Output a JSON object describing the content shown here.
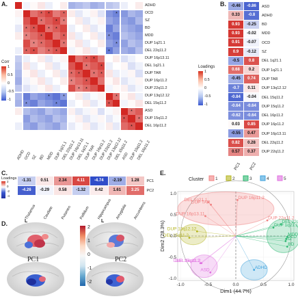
{
  "panel_labels": {
    "A": "A.",
    "B": "B.",
    "C": "C.",
    "D": "D.",
    "E": "E."
  },
  "panel_a": {
    "corr_legend": {
      "title": "Corr",
      "ticks": [
        "1",
        "0.5",
        "0",
        "-0.5",
        "-1"
      ]
    },
    "row_labels": [
      "ADHD",
      "OCD",
      "SZ",
      "BD",
      "MDD",
      "DUP 1q21.1",
      "DEL 22q11.2",
      "DUP 16p13.11",
      "DEL 1q21.1",
      "DUP TAR",
      "DUP 16p11.2",
      "DUP 22q11.2",
      "DUP 13q12.12",
      "DEL 15q11.2",
      "ASD",
      "DUP 15q11.2",
      "DEL 16p11.2"
    ],
    "col_labels": [
      "ADHD",
      "OCD",
      "SZ",
      "BD",
      "MDD",
      "DUP 1q21.1",
      "DEL 22q11.2",
      "DUP 16p13.11",
      "DEL 1q21.1",
      "DUP TAR",
      "DUP 16p11.2",
      "DUP 22q11.2",
      "DUP 13q12.12",
      "DEL 15q11.2",
      "ASD",
      "DUP 15q11.2",
      "DEL 16p11.2"
    ]
  },
  "panel_b": {
    "loadings_legend": {
      "title": "Loadings",
      "ticks": [
        "1",
        "0.5",
        "0",
        "-0.5",
        "-1"
      ]
    },
    "columns": [
      "PC1",
      "PC2"
    ],
    "rows": [
      {
        "label": "ASD",
        "pc1": "-0.46",
        "pc2": "-0.86"
      },
      {
        "label": "ADHD",
        "pc1": "0.33",
        "pc2": "-0.8"
      },
      {
        "label": "BD",
        "pc1": "0.93",
        "pc2": "-0.25"
      },
      {
        "label": "MDD",
        "pc1": "0.93",
        "pc2": "-0.02"
      },
      {
        "label": "OCD",
        "pc1": "0.91",
        "pc2": "-0.07"
      },
      {
        "label": "SZ",
        "pc1": "0.9",
        "pc2": "-0.12"
      },
      {
        "label": "DEL 1q21.1",
        "pc1": "-0.5",
        "pc2": "0.8"
      },
      {
        "label": "DUP 1q21.1",
        "pc1": "0.68",
        "pc2": "0.2"
      },
      {
        "label": "DUP TAR",
        "pc1": "-0.45",
        "pc2": "0.74"
      },
      {
        "label": "DUP 13q12.12",
        "pc1": "-0.7",
        "pc2": "0.11"
      },
      {
        "label": "DEL 15q11.2",
        "pc1": "-0.84",
        "pc2": "-0.04"
      },
      {
        "label": "DUP 15q11.2",
        "pc1": "-0.64",
        "pc2": "-0.64"
      },
      {
        "label": "DEL 16p11.2",
        "pc1": "-0.62",
        "pc2": "-0.64"
      },
      {
        "label": "DUP 16p11.2",
        "pc1": "0.03",
        "pc2": "0.85"
      },
      {
        "label": "DUP 16p13.11",
        "pc1": "-0.55",
        "pc2": "0.47"
      },
      {
        "label": "DEL 22q11.2",
        "pc1": "0.82",
        "pc2": "0.28"
      },
      {
        "label": "DUP 22q11.2",
        "pc1": "0.57",
        "pc2": "0.37"
      }
    ]
  },
  "panel_c": {
    "loadings_legend": {
      "title": "Loadings",
      "ticks": [
        "2",
        "0",
        "-2",
        "-4"
      ]
    },
    "regions": [
      "Thalamus",
      "Caudate",
      "Putamen",
      "Pallidum",
      "Hippocampus",
      "Amygdala",
      "Accumbens"
    ],
    "rows": [
      {
        "label": "PC1",
        "values": [
          "-1.31",
          "0.51",
          "2.34",
          "4.11",
          "-4.74",
          "-2.19",
          "1.28"
        ]
      },
      {
        "label": "PC2",
        "values": [
          "-4.26",
          "-0.29",
          "0.58",
          "-1.32",
          "0.42",
          "1.61",
          "3.25"
        ]
      }
    ]
  },
  "panel_d": {
    "hemisphere_labels": [
      "L",
      "L"
    ],
    "pc_labels": [
      "PC1",
      "PC2"
    ],
    "colorbar_ticks": [
      "2",
      "1",
      "0",
      "-1",
      "-2"
    ]
  },
  "panel_e": {
    "legend_title": "Cluster",
    "clusters": [
      {
        "id": "1",
        "color": "#f08080"
      },
      {
        "id": "2",
        "color": "#b5b520"
      },
      {
        "id": "3",
        "color": "#2eb872"
      },
      {
        "id": "4",
        "color": "#3ea2dc"
      },
      {
        "id": "5",
        "color": "#e070e0"
      }
    ],
    "xlabel": "Dim1 (44.7%)",
    "ylabel": "Dim2 (28.3%)",
    "x_ticks": [
      "-1.0",
      "-0.5",
      "0.0",
      "0.5",
      "1.0"
    ],
    "y_ticks": [
      "1.0",
      "0.5",
      "0.0",
      "-0.5",
      "-1.0"
    ]
  },
  "chart_data": [
    {
      "type": "heatmap",
      "panel": "A",
      "title": "",
      "note": "correlation matrix; colour scale from -1 (blue) to 1 (red)",
      "values_scale": [
        -1,
        1
      ]
    },
    {
      "type": "heatmap",
      "panel": "B",
      "series": [
        {
          "name": "PC1",
          "values": [
            -0.46,
            0.33,
            0.93,
            0.93,
            0.91,
            0.9,
            -0.5,
            0.68,
            -0.45,
            -0.7,
            -0.84,
            -0.64,
            -0.62,
            0.03,
            -0.55,
            0.82,
            0.57
          ]
        },
        {
          "name": "PC2",
          "values": [
            -0.86,
            -0.8,
            -0.25,
            -0.02,
            -0.07,
            -0.12,
            0.8,
            0.2,
            0.74,
            0.11,
            -0.04,
            -0.64,
            -0.64,
            0.85,
            0.47,
            0.28,
            0.37
          ]
        }
      ]
    },
    {
      "type": "heatmap",
      "panel": "C",
      "categories": [
        "Thalamus",
        "Caudate",
        "Putamen",
        "Pallidum",
        "Hippocampus",
        "Amygdala",
        "Accumbens"
      ],
      "series": [
        {
          "name": "PC1",
          "values": [
            -1.31,
            0.51,
            2.34,
            4.11,
            -4.74,
            -2.19,
            1.28
          ]
        },
        {
          "name": "PC2",
          "values": [
            -4.26,
            -0.29,
            0.58,
            -1.32,
            0.42,
            1.61,
            3.25
          ]
        }
      ]
    },
    {
      "type": "scatter",
      "panel": "E",
      "xlabel": "Dim1 (44.7%)",
      "ylabel": "Dim2 (28.3%)",
      "xlim": [
        -1.05,
        1.05
      ],
      "ylim": [
        -1.05,
        1.05
      ],
      "points": [
        {
          "label": "DEL 1q21.1",
          "x": -0.5,
          "y": 0.8,
          "cluster": 1
        },
        {
          "label": "DUP 16p11.2",
          "x": 0.03,
          "y": 0.85,
          "cluster": 1
        },
        {
          "label": "DUP TAR",
          "x": -0.45,
          "y": 0.74,
          "cluster": 1
        },
        {
          "label": "DUP 22q11.2",
          "x": 0.57,
          "y": 0.37,
          "cluster": 1
        },
        {
          "label": "DUP 16p13.11",
          "x": -0.55,
          "y": 0.47,
          "cluster": 1
        },
        {
          "label": "DUP 13q12.12",
          "x": -0.7,
          "y": 0.11,
          "cluster": 2
        },
        {
          "label": "DEL 15q11.2",
          "x": -0.84,
          "y": -0.04,
          "cluster": 2
        },
        {
          "label": "DEL 22q11.2",
          "x": 0.82,
          "y": 0.28,
          "cluster": 3
        },
        {
          "label": "BD",
          "x": 0.93,
          "y": -0.25,
          "cluster": 3
        },
        {
          "label": "MDD",
          "x": 0.93,
          "y": -0.02,
          "cluster": 3
        },
        {
          "label": "OCD",
          "x": 0.91,
          "y": -0.07,
          "cluster": 3
        },
        {
          "label": "SZ",
          "x": 0.9,
          "y": -0.12,
          "cluster": 3
        },
        {
          "label": "DUP 1q21.1",
          "x": 0.68,
          "y": 0.2,
          "cluster": 3
        },
        {
          "label": "ADHD",
          "x": 0.33,
          "y": -0.8,
          "cluster": 4
        },
        {
          "label": "DUP 15q11.2",
          "x": -0.64,
          "y": -0.64,
          "cluster": 5
        },
        {
          "label": "DEL 16p11.2",
          "x": -0.62,
          "y": -0.64,
          "cluster": 5
        },
        {
          "label": "ASD",
          "x": -0.46,
          "y": -0.86,
          "cluster": 5
        }
      ]
    }
  ]
}
